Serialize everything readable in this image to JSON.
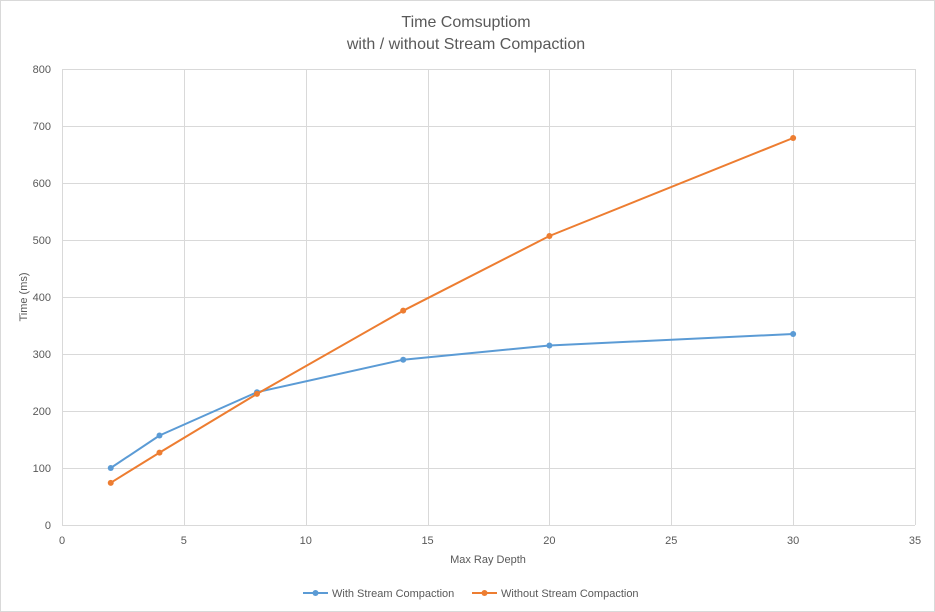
{
  "chart_data": {
    "type": "line",
    "title": "Time Comsuptiom",
    "subtitle": "with / without Stream Compaction",
    "xlabel": "Max Ray Depth",
    "ylabel": "Time (ms)",
    "xlim": [
      0,
      35
    ],
    "ylim": [
      0,
      800
    ],
    "xticks": [
      0,
      5,
      10,
      15,
      20,
      25,
      30,
      35
    ],
    "yticks": [
      0,
      100,
      200,
      300,
      400,
      500,
      600,
      700,
      800
    ],
    "grid": true,
    "legend_position": "bottom",
    "series": [
      {
        "name": "With Stream Compaction",
        "color": "#5B9BD5",
        "x": [
          2,
          4,
          8,
          14,
          20,
          30
        ],
        "y": [
          100,
          157,
          233,
          290,
          315,
          335
        ]
      },
      {
        "name": "Without Stream Compaction",
        "color": "#ED7D31",
        "x": [
          2,
          4,
          8,
          14,
          20,
          30
        ],
        "y": [
          74,
          127,
          230,
          376,
          507,
          679
        ]
      }
    ]
  }
}
